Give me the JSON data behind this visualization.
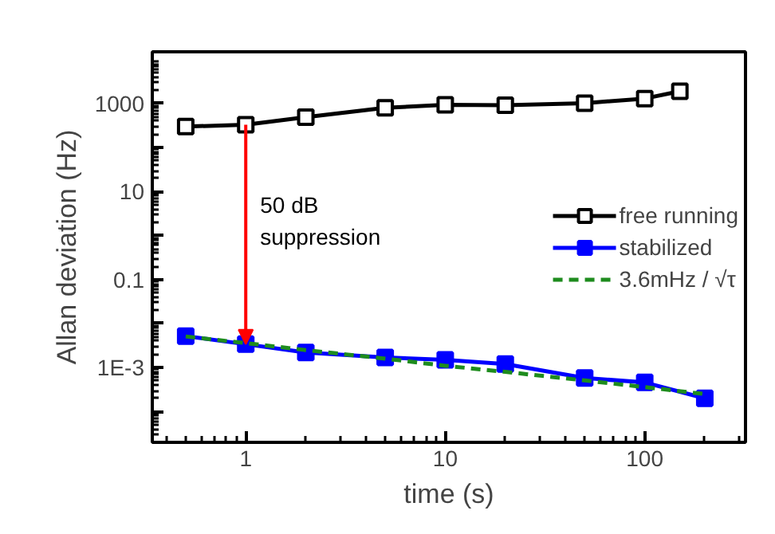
{
  "chart_data": {
    "type": "line",
    "xlabel": "time (s)",
    "ylabel": "Allan deviation (Hz)",
    "log": "xy",
    "grid": false,
    "legend": "right",
    "xlim": [
      0.34,
      320
    ],
    "xticks": [
      1,
      10,
      100
    ],
    "ylim": [
      2e-05,
      15000
    ],
    "yticks": [
      {
        "value": 0.0001,
        "label": null
      },
      {
        "value": 0.001,
        "label": "1E-3"
      },
      {
        "value": 0.01,
        "label": null
      },
      {
        "value": 0.1,
        "label": "0.1"
      },
      {
        "value": 1,
        "label": null
      },
      {
        "value": 10,
        "label": "10"
      },
      {
        "value": 100,
        "label": null
      },
      {
        "value": 1000,
        "label": "1000"
      }
    ],
    "series": [
      {
        "name": "free running",
        "color": "#000000",
        "marker": "square",
        "line_style": "solid",
        "x": [
          0.5,
          1,
          2,
          5,
          10,
          20,
          50,
          100,
          150
        ],
        "values": [
          300,
          330,
          490,
          800,
          940,
          920,
          1020,
          1300,
          1900
        ]
      },
      {
        "name": "stabilized",
        "color": "#0000ff",
        "marker": "square",
        "line_style": "solid",
        "x": [
          0.5,
          1,
          2,
          5,
          10,
          20,
          50,
          100,
          200
        ],
        "values": [
          0.0052,
          0.0034,
          0.0022,
          0.0017,
          0.0015,
          0.0012,
          0.00058,
          0.00046,
          0.0002
        ]
      },
      {
        "name": "3.6mHz / √τ",
        "color": "#1e8c1e",
        "marker": "none",
        "line_style": "dashed",
        "x": [
          0.5,
          1,
          2,
          5,
          10,
          20,
          50,
          100,
          200
        ],
        "values": [
          0.0051,
          0.0036,
          0.0025,
          0.0016,
          0.0011,
          0.0008,
          0.00051,
          0.00036,
          0.00025
        ]
      }
    ],
    "annotations": [
      "50 dB\nsuppression"
    ]
  }
}
